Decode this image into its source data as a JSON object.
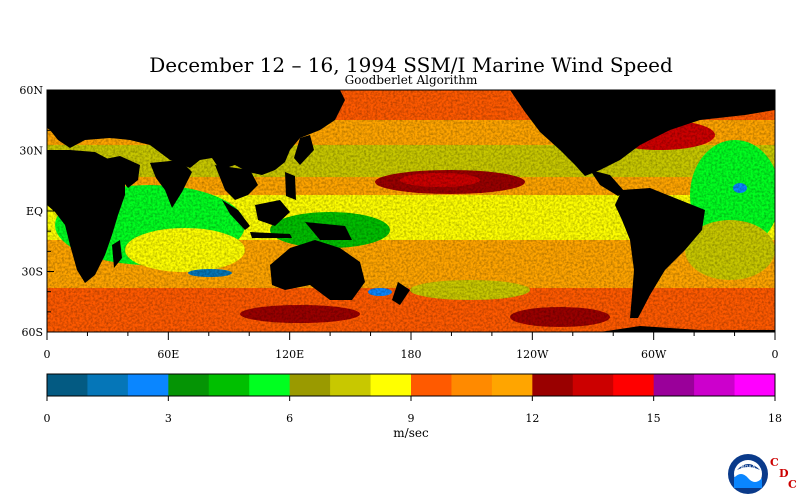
{
  "title": "December 12 – 16, 1994 SSM/I Marine Wind Speed",
  "subtitle": "Goodberlet Algorithm",
  "map": {
    "lat_labels": [
      "60N",
      "30N",
      "EQ",
      "30S",
      "60S"
    ],
    "lon_labels": [
      "0",
      "60E",
      "120E",
      "180",
      "120W",
      "60W",
      "0"
    ],
    "land_color": "#000000"
  },
  "colorbar": {
    "unit": "m/sec",
    "min": 0,
    "max": 18,
    "tick_labels": [
      "0",
      "3",
      "6",
      "9",
      "12",
      "15",
      "18"
    ],
    "colors": [
      "#035a82",
      "#0576b8",
      "#0a86ff",
      "#059405",
      "#00bf00",
      "#00ff20",
      "#9a9a00",
      "#c8c800",
      "#ffff00",
      "#ff5a00",
      "#ff8a00",
      "#ffa500",
      "#9a0000",
      "#cc0000",
      "#ff0000",
      "#9a009a",
      "#cc00cc",
      "#ff00ff"
    ]
  },
  "logo": {
    "noaa_text": "NOAA",
    "cdc_letters": [
      "C",
      "D",
      "C"
    ]
  }
}
